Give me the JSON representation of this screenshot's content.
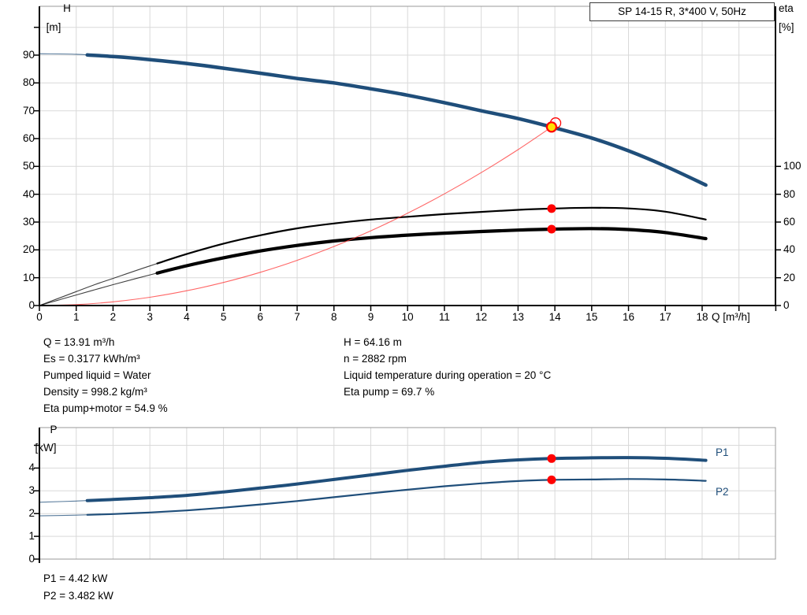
{
  "title_box": {
    "label": "SP 14-15 R, 3*400 V, 50Hz"
  },
  "colors": {
    "curve_blue": "#1f4e7a",
    "curve_black": "#000000",
    "system_red": "#ff3333",
    "marker_red": "#ff0000",
    "duty_yellow": "#ffe000",
    "grid_gray": "#d9d9d9",
    "frame_gray": "#9a9a9a"
  },
  "info": {
    "left": [
      "Q = 13.91 m³/h",
      "Es = 0.3177 kWh/m³",
      "Pumped liquid = Water",
      "Density = 998.2 kg/m³",
      "Eta pump+motor = 54.9 %"
    ],
    "right": [
      "H = 64.16 m",
      "n = 2882 rpm",
      "Liquid temperature during operation = 20 °C",
      "Eta pump = 69.7 %"
    ]
  },
  "footer": {
    "lines": [
      "P1 = 4.42 kW",
      "P2 = 3.482 kW"
    ]
  },
  "chart_data": [
    {
      "type": "line",
      "title": "SP 14-15 R, 3*400 V, 50Hz",
      "xlabel": "Q [m³/h]",
      "ylabel_left_1": "H",
      "ylabel_left_2": "[m]",
      "ylabel_right_1": "eta",
      "ylabel_right_2": "[%]",
      "xlim": [
        0,
        20
      ],
      "ylim_left": [
        0,
        107.6
      ],
      "ylim_right": [
        0,
        215
      ],
      "grid": true,
      "x_ticks": [
        0,
        1,
        2,
        3,
        4,
        5,
        6,
        7,
        8,
        9,
        10,
        11,
        12,
        13,
        14,
        15,
        16,
        17,
        18,
        19,
        20
      ],
      "x_tick_labels": [
        "0",
        "1",
        "2",
        "3",
        "4",
        "5",
        "6",
        "7",
        "8",
        "9",
        "10",
        "11",
        "12",
        "13",
        "14",
        "15",
        "16",
        "17",
        "18"
      ],
      "y_left_ticks": [
        0,
        10,
        20,
        30,
        40,
        50,
        60,
        70,
        80,
        90,
        100
      ],
      "y_left_tick_labels": [
        "0",
        "10",
        "20",
        "30",
        "40",
        "50",
        "60",
        "70",
        "80",
        "90"
      ],
      "y_right_ticks": [
        0,
        20,
        40,
        60,
        80,
        100
      ],
      "y_right_tick_labels": [
        "0",
        "20",
        "40",
        "60",
        "80",
        "100"
      ],
      "series": [
        {
          "name": "head-curve",
          "axis": "left",
          "width": 4.5,
          "thin_until": 1.3,
          "color": "#1f4e7a",
          "points": [
            [
              0,
              90.5
            ],
            [
              1,
              90.3
            ],
            [
              2,
              89.5
            ],
            [
              3,
              88.4
            ],
            [
              4,
              87.0
            ],
            [
              5,
              85.3
            ],
            [
              6,
              83.5
            ],
            [
              7,
              81.6
            ],
            [
              8,
              80.0
            ],
            [
              9,
              77.9
            ],
            [
              10,
              75.6
            ],
            [
              11,
              72.9
            ],
            [
              12,
              70.0
            ],
            [
              13,
              67.2
            ],
            [
              13.91,
              64.16
            ],
            [
              15,
              60.2
            ],
            [
              16,
              55.6
            ],
            [
              17,
              50.1
            ],
            [
              18.1,
              43.3
            ]
          ]
        },
        {
          "name": "eta-pump-curve",
          "axis": "right",
          "width": 2.2,
          "thin_until": 3.2,
          "color": "#000000",
          "points": [
            [
              0,
              0
            ],
            [
              0.5,
              5
            ],
            [
              1,
              10
            ],
            [
              1.5,
              15
            ],
            [
              2,
              19.5
            ],
            [
              3,
              28.5
            ],
            [
              4,
              37
            ],
            [
              5,
              44.5
            ],
            [
              6,
              50.5
            ],
            [
              7,
              55.5
            ],
            [
              8,
              59
            ],
            [
              9,
              61.8
            ],
            [
              10,
              63.8
            ],
            [
              11,
              65.7
            ],
            [
              12,
              67.3
            ],
            [
              13,
              68.8
            ],
            [
              13.91,
              69.7
            ],
            [
              15,
              70.3
            ],
            [
              16,
              69.8
            ],
            [
              17,
              67.5
            ],
            [
              18.1,
              61.8
            ]
          ]
        },
        {
          "name": "eta-pump-motor-curve",
          "axis": "right",
          "width": 4.2,
          "thin_until": 3.2,
          "color": "#000000",
          "points": [
            [
              0,
              0
            ],
            [
              0.5,
              3.8
            ],
            [
              1,
              7.6
            ],
            [
              1.5,
              11.3
            ],
            [
              2,
              15
            ],
            [
              3,
              22
            ],
            [
              4,
              28.6
            ],
            [
              5,
              34.3
            ],
            [
              6,
              39.2
            ],
            [
              7,
              43.2
            ],
            [
              8,
              46.4
            ],
            [
              9,
              48.8
            ],
            [
              10,
              50.6
            ],
            [
              11,
              52
            ],
            [
              12,
              53.2
            ],
            [
              13,
              54.2
            ],
            [
              13.91,
              54.9
            ],
            [
              15,
              55.3
            ],
            [
              16,
              54.6
            ],
            [
              17,
              52.5
            ],
            [
              18.1,
              48.1
            ]
          ]
        },
        {
          "name": "system-curve",
          "axis": "left",
          "width": 1.1,
          "thin_until": null,
          "color": "#ff3333",
          "points": [
            [
              0,
              0
            ],
            [
              1,
              0.33
            ],
            [
              2,
              1.33
            ],
            [
              3,
              2.98
            ],
            [
              4,
              5.31
            ],
            [
              5,
              8.29
            ],
            [
              6,
              11.94
            ],
            [
              7,
              16.25
            ],
            [
              8,
              21.23
            ],
            [
              9,
              26.86
            ],
            [
              10,
              33.17
            ],
            [
              11,
              40.13
            ],
            [
              12,
              47.76
            ],
            [
              13,
              56.05
            ],
            [
              13.91,
              64.16
            ]
          ]
        }
      ],
      "markers": [
        {
          "name": "duty-point-ring",
          "axis": "left",
          "x": 14.02,
          "y": 65.6,
          "type": "ring"
        },
        {
          "name": "duty-point",
          "axis": "left",
          "x": 13.91,
          "y": 64.16,
          "type": "duty"
        },
        {
          "name": "eta-pump-point",
          "axis": "right",
          "x": 13.91,
          "y": 69.7,
          "type": "dot"
        },
        {
          "name": "eta-pump-motor-point",
          "axis": "right",
          "x": 13.91,
          "y": 54.9,
          "type": "dot"
        }
      ]
    },
    {
      "type": "line",
      "ylabel_left_1": "P",
      "ylabel_left_2": "[kW]",
      "xlim": [
        0,
        20
      ],
      "ylim_left": [
        0,
        5.78
      ],
      "grid": true,
      "x_ticks": [
        1,
        2,
        3,
        4,
        5,
        6,
        7,
        8,
        9,
        10,
        11,
        12,
        13,
        14,
        15,
        16,
        17,
        18,
        19
      ],
      "y_left_ticks": [
        0,
        1,
        2,
        3,
        4,
        5
      ],
      "y_left_tick_labels": [
        "0",
        "1",
        "2",
        "3",
        "4"
      ],
      "series": [
        {
          "name": "p1-curve",
          "label": "P1",
          "axis": "left",
          "width": 4.0,
          "thin_until": 1.3,
          "color": "#1f4e7a",
          "points": [
            [
              0,
              2.5
            ],
            [
              1,
              2.55
            ],
            [
              2,
              2.62
            ],
            [
              3,
              2.7
            ],
            [
              4,
              2.8
            ],
            [
              5,
              2.95
            ],
            [
              6,
              3.12
            ],
            [
              7,
              3.3
            ],
            [
              8,
              3.5
            ],
            [
              9,
              3.7
            ],
            [
              10,
              3.9
            ],
            [
              11,
              4.08
            ],
            [
              12,
              4.25
            ],
            [
              13,
              4.36
            ],
            [
              13.91,
              4.42
            ],
            [
              15,
              4.45
            ],
            [
              16,
              4.46
            ],
            [
              17,
              4.43
            ],
            [
              18.1,
              4.34
            ]
          ]
        },
        {
          "name": "p2-curve",
          "label": "P2",
          "axis": "left",
          "width": 2.2,
          "thin_until": 1.3,
          "color": "#1f4e7a",
          "points": [
            [
              0,
              1.9
            ],
            [
              1,
              1.93
            ],
            [
              2,
              1.98
            ],
            [
              3,
              2.05
            ],
            [
              4,
              2.14
            ],
            [
              5,
              2.26
            ],
            [
              6,
              2.4
            ],
            [
              7,
              2.55
            ],
            [
              8,
              2.72
            ],
            [
              9,
              2.89
            ],
            [
              10,
              3.05
            ],
            [
              11,
              3.2
            ],
            [
              12,
              3.33
            ],
            [
              13,
              3.43
            ],
            [
              13.91,
              3.482
            ],
            [
              15,
              3.5
            ],
            [
              16,
              3.52
            ],
            [
              17,
              3.5
            ],
            [
              18.1,
              3.44
            ]
          ]
        }
      ],
      "markers": [
        {
          "name": "p1-point",
          "axis": "left",
          "x": 13.91,
          "y": 4.42,
          "type": "dot"
        },
        {
          "name": "p2-point",
          "axis": "left",
          "x": 13.91,
          "y": 3.482,
          "type": "dot"
        }
      ],
      "series_labels": {
        "p1": "P1",
        "p2": "P2"
      }
    }
  ]
}
